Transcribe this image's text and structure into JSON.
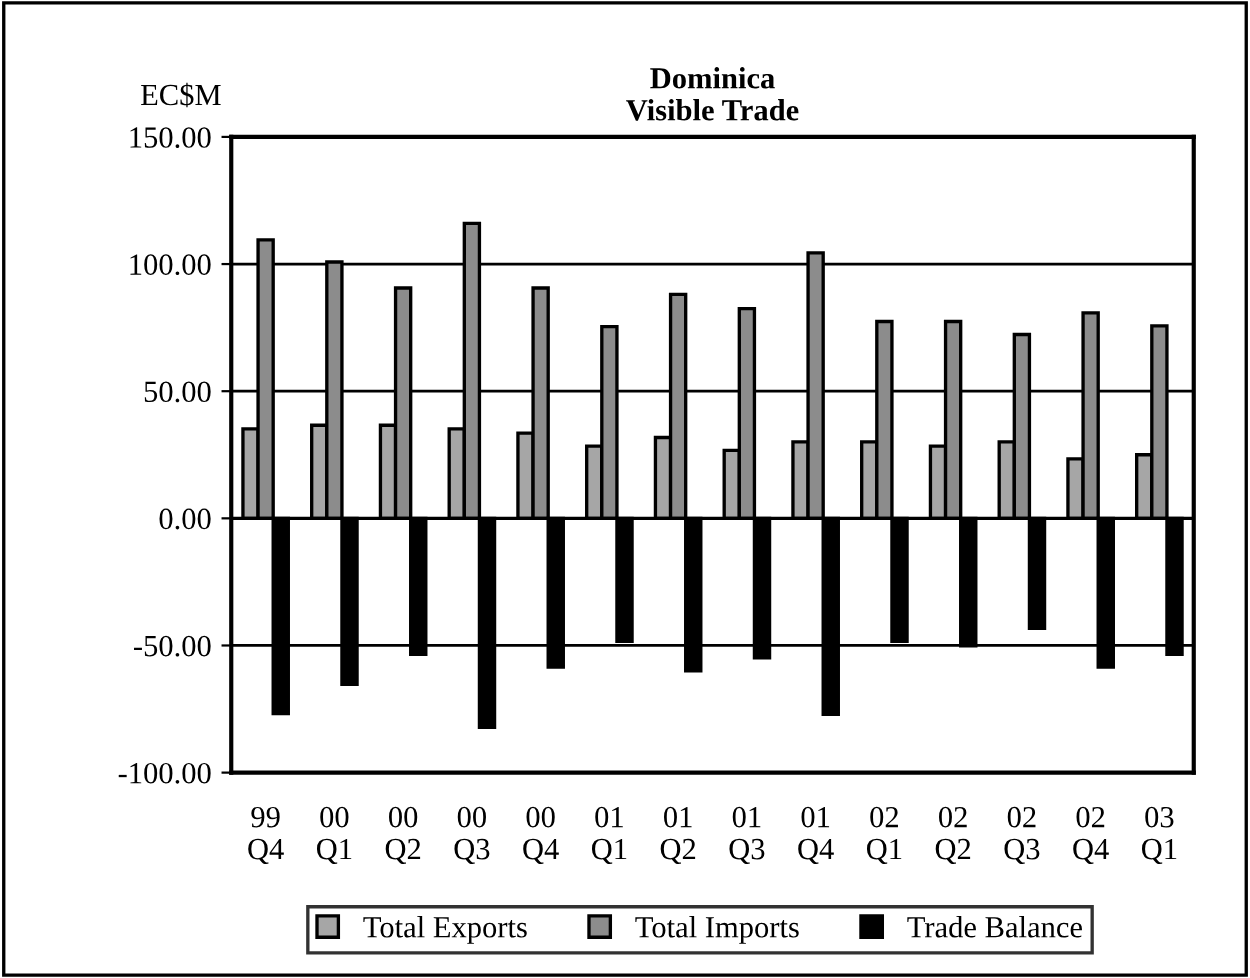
{
  "chart_data": {
    "type": "bar",
    "title": "Dominica\nVisible Trade",
    "ylabel": "EC$M",
    "categories": [
      "99\nQ4",
      "00\nQ1",
      "00\nQ2",
      "00\nQ3",
      "00\nQ4",
      "01\nQ1",
      "01\nQ2",
      "01\nQ3",
      "01\nQ4",
      "02\nQ1",
      "02\nQ2",
      "02\nQ3",
      "02\nQ4",
      "03\nQ1"
    ],
    "series": [
      {
        "name": "Total Exports",
        "color": "#a6a6a6",
        "values": [
          35.2,
          36.6,
          36.6,
          35.2,
          33.5,
          28.4,
          31.8,
          26.7,
          30.1,
          30.1,
          28.4,
          30.1,
          23.4,
          25.0
        ]
      },
      {
        "name": "Total Imports",
        "color": "#8c8c8c",
        "values": [
          109.5,
          100.8,
          90.6,
          116.0,
          90.6,
          75.4,
          88.1,
          82.5,
          104.4,
          77.4,
          77.4,
          72.3,
          80.8,
          75.7
        ]
      },
      {
        "name": "Trade Balance",
        "color": "#000000",
        "values": [
          -76.8,
          -65.3,
          -53.5,
          -82.2,
          -58.5,
          -48.4,
          -60.0,
          -54.9,
          -77.1,
          -48.4,
          -50.1,
          -43.3,
          -58.5,
          -53.5
        ]
      }
    ],
    "ylim": [
      -100,
      150
    ],
    "yticks": [
      {
        "value": -100,
        "label": "-100.00"
      },
      {
        "value": -50,
        "label": "-50.00"
      },
      {
        "value": 0,
        "label": "0.00"
      },
      {
        "value": 50,
        "label": "50.00"
      },
      {
        "value": 100,
        "label": "100.00"
      },
      {
        "value": 150,
        "label": "150.00"
      }
    ],
    "grid": "y",
    "legend": "bottom"
  }
}
